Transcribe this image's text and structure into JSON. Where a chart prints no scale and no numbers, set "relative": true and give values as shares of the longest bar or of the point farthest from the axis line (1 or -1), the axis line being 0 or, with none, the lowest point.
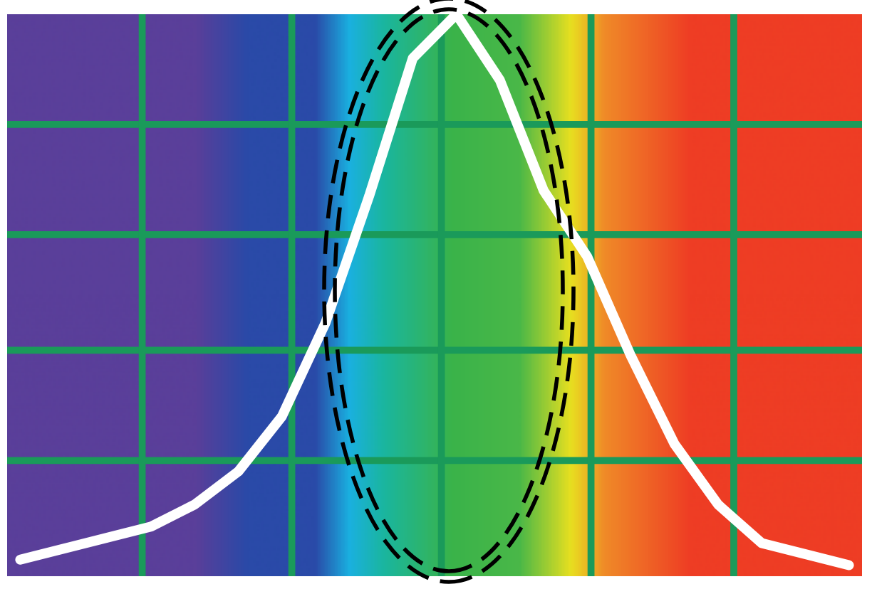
{
  "chart_data": {
    "type": "line",
    "relative": true,
    "marker": "none",
    "categories": [
      null,
      null,
      null,
      null,
      null,
      null,
      null,
      null,
      null,
      null,
      null,
      null,
      null,
      null,
      null,
      null,
      null,
      null,
      null,
      null
    ],
    "series": [
      {
        "color": "#ffffff",
        "values": [
          0.01,
          0.03,
          0.05,
          0.07,
          0.11,
          0.17,
          0.27,
          0.44,
          0.67,
          0.92,
          1,
          0.88,
          0.68,
          0.56,
          0.38,
          0.22,
          0.11,
          0.04,
          0.02,
          0
        ]
      }
    ],
    "ref_lines": [
      {
        "axis": "y",
        "value": 0.19,
        "color": "#1a9a5a"
      },
      {
        "axis": "y",
        "value": 0.39,
        "color": "#1a9a5a"
      },
      {
        "axis": "y",
        "value": 0.6,
        "color": "#1a9a5a"
      },
      {
        "axis": "y",
        "value": 0.8,
        "color": "#1a9a5a"
      }
    ]
  }
}
